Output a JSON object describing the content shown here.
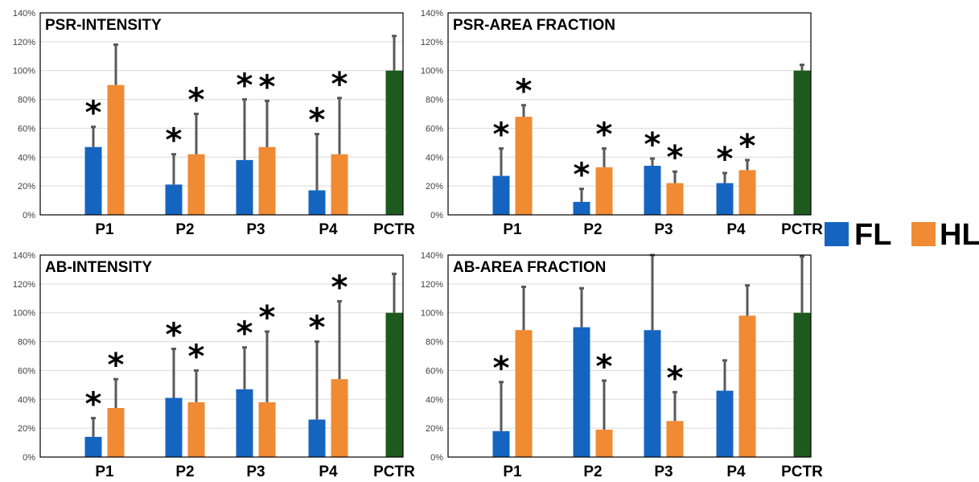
{
  "legend": [
    {
      "label": "FL",
      "color": "#1565C0"
    },
    {
      "label": "HL",
      "color": "#F08A33"
    }
  ],
  "colors": {
    "FL": "#1565C0",
    "HL": "#F08A33",
    "PCTR": "#1E5A1E",
    "error_bar": "#595959",
    "grid": "#D9D9D9"
  },
  "significance_marker": "*",
  "chart_data": [
    {
      "type": "bar",
      "title": "PSR-INTENSITY",
      "categories": [
        "P1",
        "P2",
        "P3",
        "P4",
        "PCTR"
      ],
      "yticks": [
        "0%",
        "20%",
        "40%",
        "60%",
        "80%",
        "100%",
        "120%",
        "140%"
      ],
      "ylim": [
        0,
        140
      ],
      "grid": true,
      "series": [
        {
          "name": "FL",
          "values": [
            47,
            21,
            38,
            17,
            null
          ],
          "errors": [
            14,
            21,
            42,
            39,
            null
          ],
          "significant": [
            true,
            true,
            true,
            true,
            false
          ]
        },
        {
          "name": "HL",
          "values": [
            90,
            42,
            47,
            42,
            null
          ],
          "errors": [
            28,
            28,
            32,
            39,
            null
          ],
          "significant": [
            false,
            true,
            true,
            true,
            false
          ]
        },
        {
          "name": "PCTR",
          "values": [
            null,
            null,
            null,
            null,
            100
          ],
          "errors": [
            null,
            null,
            null,
            null,
            24
          ],
          "significant": [
            false,
            false,
            false,
            false,
            false
          ]
        }
      ]
    },
    {
      "type": "bar",
      "title": "PSR-AREA FRACTION",
      "categories": [
        "P1",
        "P2",
        "P3",
        "P4",
        "PCTR"
      ],
      "yticks": [
        "0%",
        "20%",
        "40%",
        "60%",
        "80%",
        "100%",
        "120%",
        "140%"
      ],
      "ylim": [
        0,
        140
      ],
      "grid": true,
      "series": [
        {
          "name": "FL",
          "values": [
            27,
            9,
            34,
            22,
            null
          ],
          "errors": [
            19,
            9,
            5,
            7,
            null
          ],
          "significant": [
            true,
            true,
            true,
            true,
            false
          ]
        },
        {
          "name": "HL",
          "values": [
            68,
            33,
            22,
            31,
            null
          ],
          "errors": [
            8,
            13,
            8,
            7,
            null
          ],
          "significant": [
            true,
            true,
            true,
            true,
            false
          ]
        },
        {
          "name": "PCTR",
          "values": [
            null,
            null,
            null,
            null,
            100
          ],
          "errors": [
            null,
            null,
            null,
            null,
            4
          ],
          "significant": [
            false,
            false,
            false,
            false,
            false
          ]
        }
      ]
    },
    {
      "type": "bar",
      "title": "AB-INTENSITY",
      "categories": [
        "P1",
        "P2",
        "P3",
        "P4",
        "PCTR"
      ],
      "yticks": [
        "0%",
        "20%",
        "40%",
        "60%",
        "80%",
        "100%",
        "120%",
        "140%"
      ],
      "ylim": [
        0,
        140
      ],
      "grid": true,
      "series": [
        {
          "name": "FL",
          "values": [
            14,
            41,
            47,
            26,
            null
          ],
          "errors": [
            13,
            34,
            29,
            54,
            null
          ],
          "significant": [
            true,
            true,
            true,
            true,
            false
          ]
        },
        {
          "name": "HL",
          "values": [
            34,
            38,
            38,
            54,
            null
          ],
          "errors": [
            20,
            22,
            49,
            54,
            null
          ],
          "significant": [
            true,
            true,
            true,
            true,
            false
          ]
        },
        {
          "name": "PCTR",
          "values": [
            null,
            null,
            null,
            null,
            100
          ],
          "errors": [
            null,
            null,
            null,
            null,
            27
          ],
          "significant": [
            false,
            false,
            false,
            false,
            false
          ]
        }
      ]
    },
    {
      "type": "bar",
      "title": "AB-AREA FRACTION",
      "categories": [
        "P1",
        "P2",
        "P3",
        "P4",
        "PCTR"
      ],
      "yticks": [
        "0%",
        "20%",
        "40%",
        "60%",
        "80%",
        "100%",
        "120%",
        "140%"
      ],
      "ylim": [
        0,
        140
      ],
      "grid": true,
      "series": [
        {
          "name": "FL",
          "values": [
            18,
            90,
            88,
            46,
            null
          ],
          "errors": [
            34,
            27,
            52,
            21,
            null
          ],
          "significant": [
            true,
            false,
            false,
            false,
            false
          ]
        },
        {
          "name": "HL",
          "values": [
            88,
            19,
            25,
            98,
            null
          ],
          "errors": [
            30,
            34,
            20,
            21,
            null
          ],
          "significant": [
            false,
            true,
            true,
            false,
            false
          ]
        },
        {
          "name": "PCTR",
          "values": [
            null,
            null,
            null,
            null,
            100
          ],
          "errors": [
            null,
            null,
            null,
            null,
            39
          ],
          "significant": [
            false,
            false,
            false,
            false,
            false
          ]
        }
      ]
    }
  ]
}
